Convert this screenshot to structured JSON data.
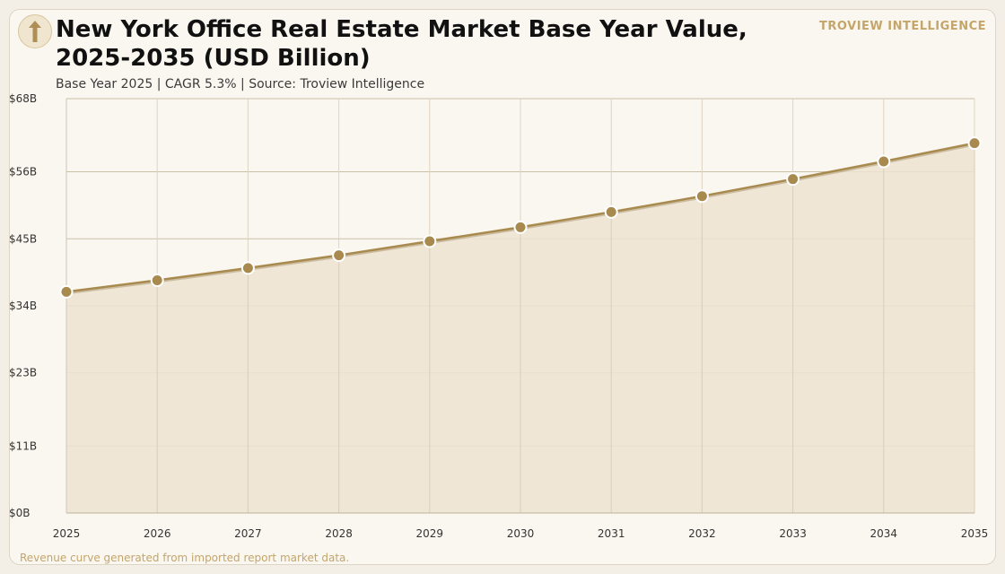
{
  "header": {
    "title": "New York Office Real Estate Market Base Year Value, 2025-2035 (USD Billion)",
    "subtitle": "Base Year 2025 | CAGR 5.3% | Source: Troview Intelligence",
    "brand": "TROVIEW INTELLIGENCE",
    "logo_icon": "arrow-up-icon"
  },
  "footer": {
    "note": "Revenue curve generated from imported report market data."
  },
  "colors": {
    "line": "#a88a4e",
    "marker": "#a88a4e",
    "fill": "#ede3d1",
    "grid": "#cbbfa8",
    "brand": "#c4a56a"
  },
  "chart_data": {
    "type": "area",
    "title": "New York Office Real Estate Market Base Year Value, 2025-2035 (USD Billion)",
    "x": [
      "2025",
      "2026",
      "2027",
      "2028",
      "2029",
      "2030",
      "2031",
      "2032",
      "2033",
      "2034",
      "2035"
    ],
    "series": [
      {
        "values": [
          36.3,
          38.2,
          40.2,
          42.3,
          44.6,
          46.9,
          49.4,
          52.0,
          54.8,
          57.7,
          60.7
        ]
      }
    ],
    "ylim": [
      0,
      68
    ],
    "yticks": [
      0,
      11,
      23,
      34,
      45,
      56,
      68
    ],
    "ytick_labels": [
      "$0B",
      "$11B",
      "$23B",
      "$34B",
      "$45B",
      "$56B",
      "$68B"
    ],
    "xlabel": "",
    "ylabel": "",
    "grid": true,
    "legend": "none",
    "markers": true
  }
}
